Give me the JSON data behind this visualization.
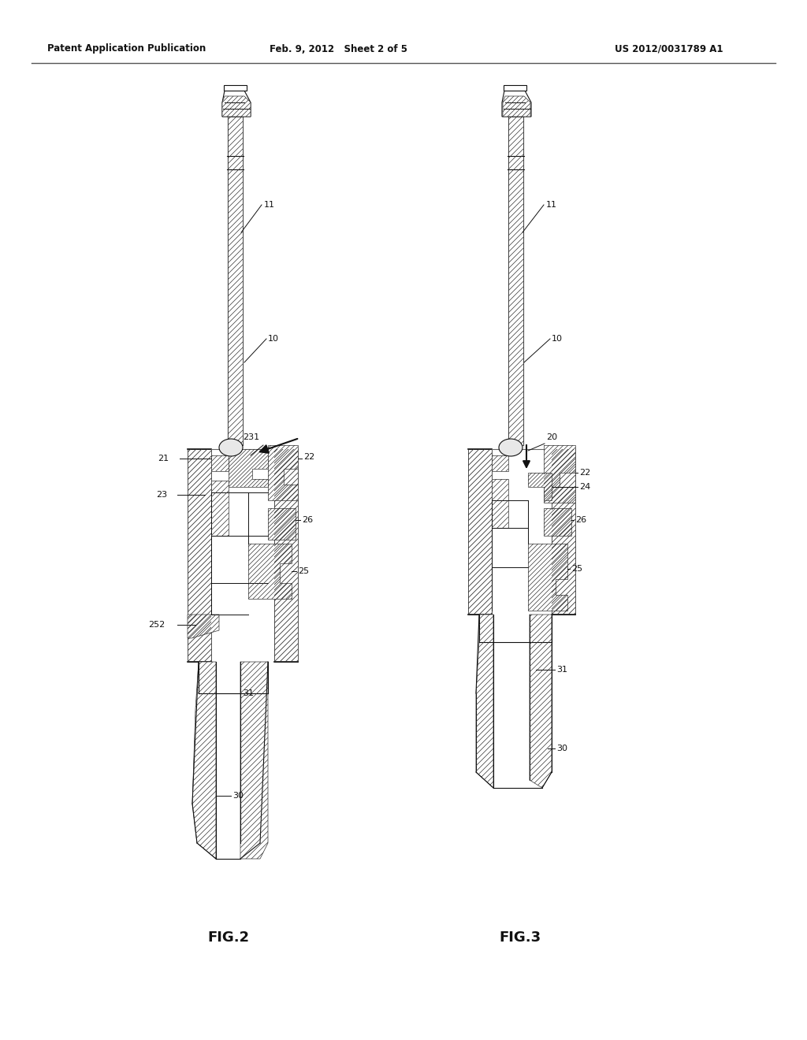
{
  "bg_color": "#ffffff",
  "header_left": "Patent Application Publication",
  "header_mid": "Feb. 9, 2012   Sheet 2 of 5",
  "header_right": "US 2012/0031789 A1",
  "fig2_label": "FIG.2",
  "fig3_label": "FIG.3",
  "dark": "#111111",
  "gray": "#888888",
  "light_gray": "#cccccc"
}
